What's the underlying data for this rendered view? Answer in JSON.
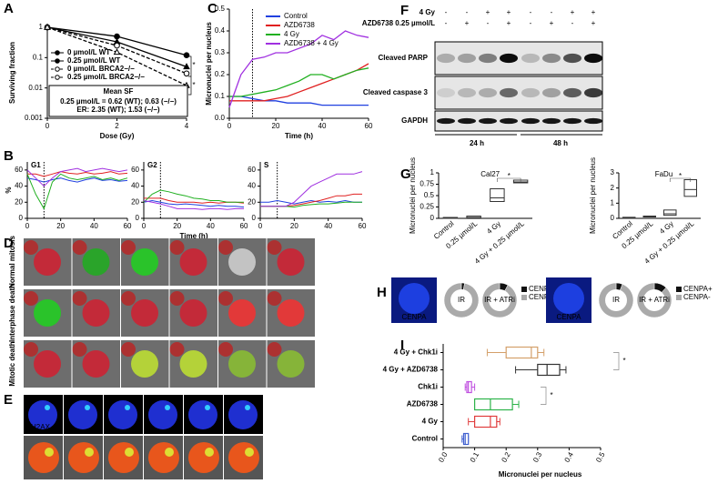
{
  "panel_labels": [
    "A",
    "B",
    "C",
    "D",
    "E",
    "F",
    "G",
    "H",
    "I"
  ],
  "chart_data": [
    {
      "type": "line",
      "xlabel": "Dose (Gy)",
      "ylabel": "Surviving fraction",
      "log_y": true,
      "xlim": [
        0,
        4
      ],
      "ylim": [
        0.001,
        1
      ],
      "xticks": [
        0,
        2,
        4
      ],
      "yticks": [
        0.001,
        0.01,
        0.1,
        1
      ],
      "x": [
        0,
        2,
        4
      ],
      "series": [
        {
          "name": "0 µmol/L WT",
          "color": "#000000",
          "line_style": "solid",
          "marker": "circle",
          "values": [
            1,
            0.5,
            0.12
          ]
        },
        {
          "name": "0.25 µmol/L WT",
          "color": "#000000",
          "line_style": "solid",
          "marker": "triangle",
          "values": [
            1,
            0.33,
            0.05
          ]
        },
        {
          "name": "0 µmol/L BRCA2−/−",
          "color": "#000000",
          "line_style": "dashed",
          "marker": "open-circle",
          "values": [
            1,
            0.25,
            0.03
          ]
        },
        {
          "name": "0.25 µmol/L BRCA2−/−",
          "color": "#000000",
          "line_style": "dashed",
          "marker": "open-triangle",
          "values": [
            1,
            0.15,
            0.012
          ]
        }
      ],
      "note_title": "Mean SF",
      "notes": [
        "0.25 µmol/L = 0.62 (WT); 0.63 (−/−)",
        "ER: 2.35 (WT); 1.53 (−/−)"
      ],
      "annotations": [
        "*",
        "*"
      ]
    },
    {
      "type": "line",
      "title": "G1",
      "ylabel": "%",
      "xlim": [
        0,
        60
      ],
      "ylim": [
        0,
        70
      ],
      "xticks": [
        0,
        20,
        40,
        60
      ],
      "yticks": [
        0,
        20,
        40,
        60
      ],
      "vline": 10,
      "x": [
        0,
        5,
        10,
        15,
        20,
        25,
        30,
        35,
        40,
        45,
        50,
        55,
        60
      ],
      "series": [
        {
          "color": "#2040e0",
          "values": [
            50,
            48,
            45,
            48,
            50,
            47,
            45,
            48,
            50,
            47,
            48,
            46,
            47
          ]
        },
        {
          "color": "#e02020",
          "values": [
            55,
            55,
            52,
            55,
            58,
            56,
            55,
            57,
            55,
            56,
            58,
            55,
            56
          ]
        },
        {
          "color": "#20b020",
          "values": [
            55,
            30,
            12,
            45,
            55,
            50,
            48,
            50,
            52,
            48,
            50,
            47,
            50
          ]
        },
        {
          "color": "#a030e0",
          "values": [
            60,
            50,
            40,
            50,
            58,
            60,
            62,
            58,
            60,
            62,
            60,
            58,
            60
          ]
        }
      ]
    },
    {
      "type": "line",
      "title": "G2",
      "xlabel": "Time (h)",
      "xlim": [
        0,
        60
      ],
      "ylim": [
        0,
        70
      ],
      "xticks": [
        0,
        20,
        40,
        60
      ],
      "yticks": [
        0,
        20,
        40,
        60
      ],
      "vline": 10,
      "x": [
        0,
        5,
        10,
        15,
        20,
        25,
        30,
        35,
        40,
        45,
        50,
        55,
        60
      ],
      "series": [
        {
          "color": "#2040e0",
          "values": [
            20,
            22,
            20,
            18,
            17,
            18,
            17,
            16,
            15,
            16,
            15,
            15,
            14
          ]
        },
        {
          "color": "#e02020",
          "values": [
            25,
            25,
            25,
            22,
            20,
            20,
            20,
            19,
            20,
            19,
            20,
            20,
            19
          ]
        },
        {
          "color": "#20b020",
          "values": [
            20,
            30,
            35,
            33,
            30,
            28,
            25,
            24,
            22,
            22,
            20,
            20,
            20
          ]
        },
        {
          "color": "#a030e0",
          "values": [
            22,
            20,
            18,
            15,
            12,
            12,
            12,
            11,
            12,
            12,
            11,
            12,
            12
          ]
        }
      ]
    },
    {
      "type": "line",
      "title": "S",
      "xlim": [
        0,
        60
      ],
      "ylim": [
        0,
        70
      ],
      "xticks": [
        0,
        20,
        40,
        60
      ],
      "yticks": [
        0,
        20,
        40,
        60
      ],
      "vline": 10,
      "x": [
        0,
        5,
        10,
        15,
        20,
        25,
        30,
        35,
        40,
        45,
        50,
        55,
        60
      ],
      "series": [
        {
          "color": "#2040e0",
          "values": [
            20,
            20,
            22,
            20,
            18,
            20,
            22,
            20,
            21,
            20,
            22,
            20,
            20
          ]
        },
        {
          "color": "#e02020",
          "values": [
            15,
            15,
            15,
            15,
            16,
            18,
            20,
            22,
            25,
            28,
            28,
            30,
            30
          ]
        },
        {
          "color": "#20b020",
          "values": [
            15,
            15,
            15,
            15,
            14,
            16,
            17,
            18,
            18,
            19,
            20,
            20,
            20
          ]
        },
        {
          "color": "#a030e0",
          "values": [
            15,
            15,
            15,
            15,
            20,
            30,
            40,
            45,
            50,
            55,
            55,
            55,
            58
          ]
        }
      ]
    },
    {
      "type": "line",
      "xlabel": "Time (h)",
      "ylabel": "Micronuclei per nucleus",
      "xlim": [
        0,
        60
      ],
      "ylim": [
        0,
        0.5
      ],
      "xticks": [
        0,
        20,
        40,
        60
      ],
      "yticks": [
        {
          "value": 0,
          "label": "0.0"
        },
        0.1,
        0.2,
        0.3,
        0.4,
        0.5
      ],
      "vline": 10,
      "x": [
        0,
        5,
        10,
        15,
        20,
        25,
        30,
        35,
        40,
        45,
        50,
        55,
        60
      ],
      "series": [
        {
          "name": "Control",
          "color": "#2040e0",
          "values": [
            0.1,
            0.1,
            0.09,
            0.08,
            0.08,
            0.07,
            0.07,
            0.07,
            0.06,
            0.06,
            0.06,
            0.06,
            0.06
          ]
        },
        {
          "name": "AZD6738",
          "color": "#e02020",
          "values": [
            0.08,
            0.08,
            0.08,
            0.08,
            0.09,
            0.1,
            0.12,
            0.14,
            0.16,
            0.18,
            0.2,
            0.22,
            0.25
          ]
        },
        {
          "name": "4 Gy",
          "color": "#20b020",
          "values": [
            0.1,
            0.1,
            0.11,
            0.12,
            0.13,
            0.15,
            0.17,
            0.2,
            0.2,
            0.18,
            0.2,
            0.22,
            0.23
          ]
        },
        {
          "name": "AZD6738 + 4 Gy",
          "color": "#a030e0",
          "values": [
            0.05,
            0.2,
            0.27,
            0.28,
            0.3,
            0.3,
            0.32,
            0.34,
            0.38,
            0.36,
            0.4,
            0.38,
            0.37
          ]
        }
      ]
    },
    {
      "type": "box",
      "title": "Cal27",
      "ylabel": "Micronuclei per nucleus",
      "ylim": [
        0,
        1
      ],
      "yticks": [
        0,
        0.25,
        0.5,
        0.75,
        1
      ],
      "categories": [
        "Control",
        "0.25 µmol/L",
        "4 Gy",
        "4 Gy + 0.25 µmol/L"
      ],
      "boxes": [
        [
          0.01,
          0.01,
          0.02
        ],
        [
          0.01,
          0.02,
          0.05
        ],
        [
          0.37,
          0.45,
          0.65
        ],
        [
          0.78,
          0.8,
          0.84
        ]
      ],
      "annotations": [
        "*"
      ]
    },
    {
      "type": "box",
      "title": "FaDu",
      "ylabel": "Micronuclei per nucleus",
      "ylim": [
        0,
        3
      ],
      "yticks": [
        0,
        1,
        2,
        3
      ],
      "categories": [
        "Control",
        "0.25 µmol/L",
        "4 Gy",
        "4 Gy + 0.25 µmol/L"
      ],
      "boxes": [
        [
          0.03,
          0.05,
          0.07
        ],
        [
          0.1,
          0.12,
          0.15
        ],
        [
          0.2,
          0.3,
          0.55
        ],
        [
          1.45,
          1.9,
          2.55
        ]
      ],
      "annotations": [
        "*"
      ]
    },
    {
      "type": "hbox",
      "xlabel": "Micronuclei per nucleus",
      "xlim": [
        0,
        0.5
      ],
      "xticks": [
        {
          "value": 0,
          "label": "0.0"
        },
        0.1,
        0.2,
        0.3,
        0.4,
        0.5
      ],
      "categories": [
        "4 Gy + Chk1i",
        "4 Gy + AZD6738",
        "Chk1i",
        "AZD6738",
        "4 Gy",
        "Control"
      ],
      "colors": [
        "#d4a06a",
        "#333333",
        "#c050e0",
        "#2db34a",
        "#e03c3c",
        "#4060d0"
      ],
      "boxes": [
        [
          0.14,
          0.2,
          0.28,
          0.3,
          0.32
        ],
        [
          0.23,
          0.3,
          0.33,
          0.37,
          0.39
        ],
        [
          0.07,
          0.075,
          0.08,
          0.09,
          0.1
        ],
        [
          0.1,
          0.1,
          0.15,
          0.22,
          0.24
        ],
        [
          0.08,
          0.1,
          0.15,
          0.17,
          0.18
        ],
        [
          0.06,
          0.065,
          0.07,
          0.08,
          0.08
        ]
      ],
      "annotations": [
        "*",
        "*"
      ]
    }
  ],
  "mitosis": {
    "rows": [
      "Normal mitosis",
      "Interphase death",
      "Mitotic death"
    ],
    "stain": "γH2AX"
  },
  "blot": {
    "conditions": [
      {
        "label": "4 Gy",
        "signs": [
          "-",
          "-",
          "+",
          "+",
          "-",
          "-",
          "+",
          "+"
        ]
      },
      {
        "label": "AZD6738 0.25 µmol/L",
        "signs": [
          "-",
          "+",
          "-",
          "+",
          "-",
          "+",
          "-",
          "+"
        ]
      }
    ],
    "bands": [
      "Cleaved PARP",
      "Cleaved caspase 3",
      "GAPDH"
    ],
    "times": [
      "24 h",
      "48 h"
    ]
  },
  "centromere": {
    "subpanels": [
      {
        "stain": "CENPA",
        "pies": [
          {
            "label": "IR",
            "values": [
              3,
              97
            ]
          },
          {
            "label": "IR + ATRi",
            "values": [
              8,
              92
            ]
          }
        ],
        "legend": [
          "CENPA+",
          "CENPA-"
        ],
        "colors": [
          "#111111",
          "#aaaaaa"
        ]
      },
      {
        "stain": "CENPA",
        "pies": [
          {
            "label": "IR",
            "values": [
              6,
              94
            ]
          },
          {
            "label": "IR + ATRi",
            "values": [
              12,
              88
            ]
          }
        ],
        "legend": [
          "CENPA+",
          "CENPA-"
        ],
        "colors": [
          "#111111",
          "#aaaaaa"
        ]
      }
    ]
  }
}
